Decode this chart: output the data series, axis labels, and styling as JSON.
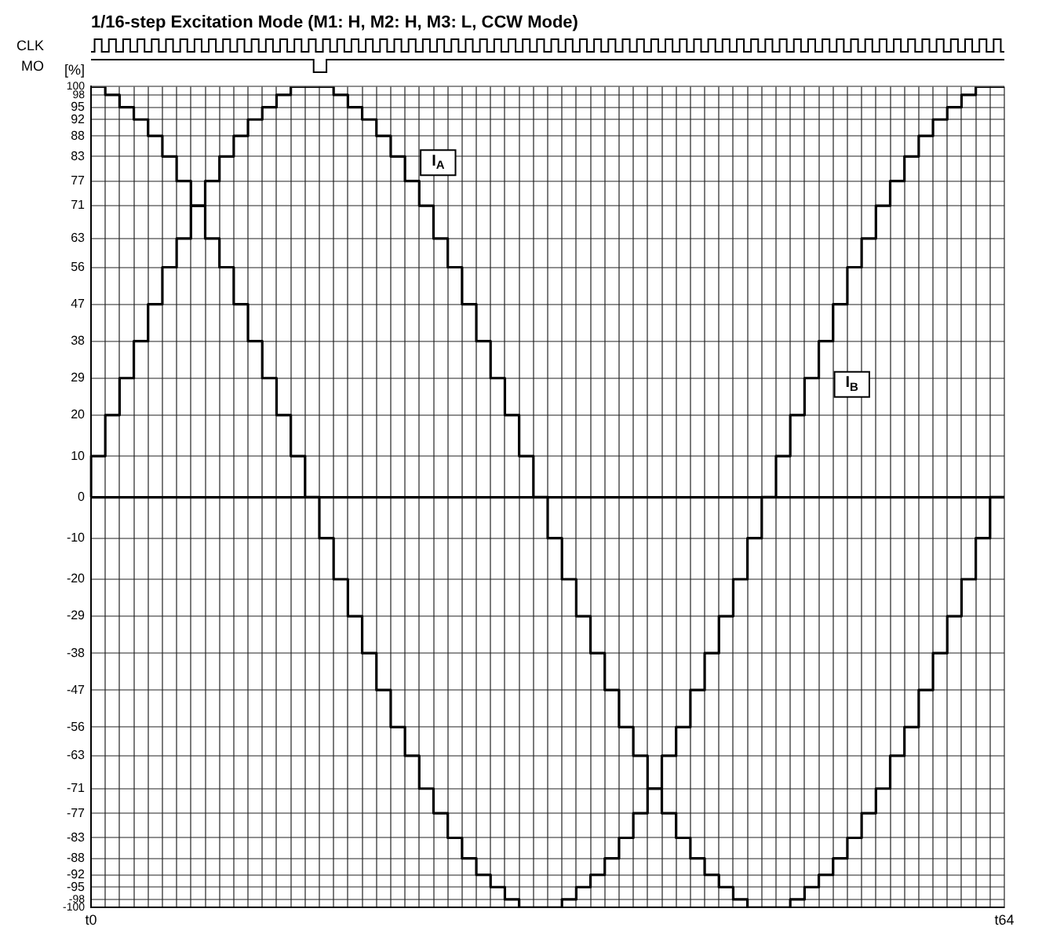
{
  "chart_data": {
    "type": "step",
    "title": "1/16-step Excitation Mode (M1: H, M2: H, M3: L, CCW Mode)",
    "ylabel": "[%]",
    "annotations": [
      "CLK",
      "MO"
    ],
    "categories": [
      "t0",
      null,
      null,
      null,
      null,
      null,
      null,
      null,
      null,
      null,
      null,
      null,
      null,
      null,
      null,
      null,
      null,
      null,
      null,
      null,
      null,
      null,
      null,
      null,
      null,
      null,
      null,
      null,
      null,
      null,
      null,
      null,
      null,
      null,
      null,
      null,
      null,
      null,
      null,
      null,
      null,
      null,
      null,
      null,
      null,
      null,
      null,
      null,
      null,
      null,
      null,
      null,
      null,
      null,
      null,
      null,
      null,
      null,
      null,
      null,
      null,
      null,
      null,
      null,
      "t64"
    ],
    "series": [
      {
        "name": "I$_{A}$",
        "color": "#000000",
        "values": [
          0,
          10,
          20,
          29,
          38,
          47,
          56,
          63,
          71,
          77,
          83,
          88,
          92,
          95,
          98,
          100,
          100,
          100,
          98,
          95,
          92,
          88,
          83,
          77,
          71,
          63,
          56,
          47,
          38,
          29,
          20,
          10,
          0,
          -10,
          -20,
          -29,
          -38,
          -47,
          -56,
          -63,
          -71,
          -77,
          -83,
          -88,
          -92,
          -95,
          -98,
          -100,
          -100,
          -100,
          -98,
          -95,
          -92,
          -88,
          -83,
          -77,
          -71,
          -63,
          -56,
          -47,
          -38,
          -29,
          -20,
          -10,
          0
        ]
      },
      {
        "name": "I$_{B}$",
        "color": "#000000",
        "values": [
          100,
          100,
          98,
          95,
          92,
          88,
          83,
          77,
          71,
          63,
          56,
          47,
          38,
          29,
          20,
          10,
          0,
          -10,
          -20,
          -29,
          -38,
          -47,
          -56,
          -63,
          -71,
          -77,
          -83,
          -88,
          -92,
          -95,
          -98,
          -100,
          -100,
          -100,
          -98,
          -95,
          -92,
          -88,
          -83,
          -77,
          -71,
          -63,
          -56,
          -47,
          -38,
          -29,
          -20,
          -10,
          0,
          10,
          20,
          29,
          38,
          47,
          56,
          63,
          71,
          77,
          83,
          88,
          92,
          95,
          98,
          100,
          100
        ]
      }
    ],
    "ylim": [
      -100,
      100
    ],
    "yticks": [
      -100,
      -98,
      -95,
      -92,
      -88,
      -83,
      -77,
      -71,
      -63,
      -56,
      -47,
      -38,
      -29,
      -20,
      -10,
      0,
      10,
      20,
      29,
      38,
      47,
      56,
      63,
      71,
      77,
      83,
      88,
      92,
      95,
      98,
      100
    ],
    "grid": true,
    "marker": "none",
    "line_style": "solid"
  }
}
